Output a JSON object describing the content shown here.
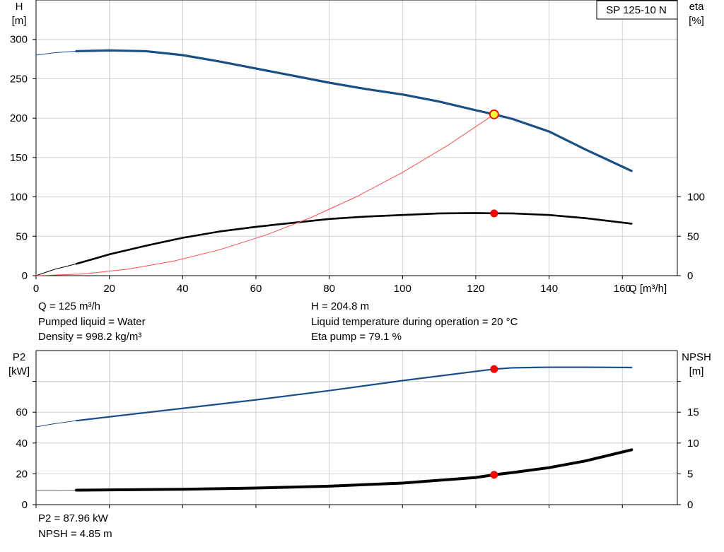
{
  "pump_model": "SP 125-10 N",
  "chart_data": [
    {
      "type": "line",
      "panel": "head-efficiency",
      "x_axis": {
        "label": "Q [m³/h]",
        "range": [
          0,
          175
        ],
        "ticks": [
          0,
          20,
          40,
          60,
          80,
          100,
          120,
          140,
          160
        ]
      },
      "y_left": {
        "label_line1": "H",
        "label_line2": "[m]",
        "range": [
          0,
          350
        ],
        "ticks": [
          0,
          50,
          100,
          150,
          200,
          250,
          300
        ]
      },
      "y_right": {
        "label_line1": "eta",
        "label_line2": "[%]",
        "range": [
          0,
          350
        ],
        "ticks": [
          0,
          50,
          100
        ]
      },
      "grid": true,
      "series": [
        {
          "name": "H",
          "axis": "left",
          "color": "#1a4f86",
          "extrapolated": {
            "x": [
              0,
              5,
              11
            ],
            "y": [
              280,
              283,
              285
            ]
          },
          "x": [
            11,
            20,
            30,
            40,
            50,
            60,
            70,
            80,
            90,
            100,
            110,
            120,
            125,
            130,
            140,
            150,
            162.5
          ],
          "y": [
            285,
            286,
            285,
            280,
            272,
            263,
            254,
            245,
            237,
            230,
            221,
            210,
            204.8,
            199,
            183,
            160,
            133
          ]
        },
        {
          "name": "eta",
          "axis": "right",
          "color": "#000000",
          "extrapolated": {
            "x": [
              0,
              5,
              11
            ],
            "y": [
              0,
              8,
              15
            ]
          },
          "x": [
            11,
            20,
            30,
            40,
            50,
            60,
            70,
            80,
            90,
            100,
            110,
            120,
            125,
            130,
            140,
            150,
            162.5
          ],
          "y": [
            15,
            27,
            38,
            48,
            56,
            62,
            67,
            72,
            75,
            77,
            79,
            79.5,
            79.1,
            79,
            77,
            73,
            66
          ]
        },
        {
          "name": "system-curve",
          "axis": "left",
          "color": "#ff4d4d",
          "x": [
            0,
            12.5,
            25,
            37.5,
            50,
            62.5,
            75,
            87.5,
            100,
            112.5,
            125
          ],
          "y": [
            0,
            2,
            8.2,
            18.4,
            32.8,
            51.2,
            73.7,
            100.4,
            131.1,
            165.9,
            204.8
          ]
        }
      ],
      "duty_point": {
        "x": 125,
        "y_head": 204.8,
        "y_eta": 79.1
      }
    },
    {
      "type": "line",
      "panel": "power-npsh",
      "x_axis": {
        "range": [
          0,
          175
        ],
        "ticks": [
          0,
          20,
          40,
          60,
          80,
          100,
          120,
          140,
          160
        ]
      },
      "y_left": {
        "label_line1": "P2",
        "label_line2": "[kW]",
        "range": [
          0,
          100
        ],
        "ticks": [
          0,
          20,
          40,
          60
        ]
      },
      "y_right": {
        "label_line1": "NPSH",
        "label_line2": "[m]",
        "range": [
          0,
          25
        ],
        "ticks": [
          0,
          5,
          10,
          15
        ]
      },
      "grid": true,
      "series": [
        {
          "name": "P2",
          "axis": "left",
          "color": "#1a4f86",
          "extrapolated": {
            "x": [
              0,
              5,
              11
            ],
            "y": [
              50.5,
              52.5,
              54.5
            ]
          },
          "x": [
            11,
            20,
            40,
            60,
            80,
            100,
            120,
            125,
            130,
            140,
            150,
            162.5
          ],
          "y": [
            54.5,
            57,
            62.5,
            68,
            74,
            80.5,
            86.5,
            87.96,
            88.8,
            89.2,
            89.2,
            89
          ]
        },
        {
          "name": "NPSH",
          "axis": "right",
          "color": "#000000",
          "extrapolated": {
            "x": [
              0,
              5,
              11
            ],
            "y": [
              2.3,
              2.3,
              2.35
            ]
          },
          "x": [
            11,
            20,
            40,
            60,
            80,
            100,
            120,
            125,
            130,
            140,
            150,
            162.5
          ],
          "y": [
            2.35,
            2.4,
            2.5,
            2.7,
            3.0,
            3.5,
            4.4,
            4.85,
            5.2,
            6.0,
            7.1,
            8.9
          ]
        }
      ],
      "duty_point": {
        "x": 125,
        "y_p2": 87.96,
        "y_npsh": 4.85
      }
    }
  ],
  "info_top": {
    "q": "Q = 125 m³/h",
    "liquid": "Pumped liquid = Water",
    "density": "Density = 998.2 kg/m³",
    "h": "H = 204.8 m",
    "temperature": "Liquid temperature during operation = 20 °C",
    "eta": "Eta pump = 79.1 %"
  },
  "info_bottom": {
    "p2": "P2 = 87.96 kW",
    "npsh": "NPSH = 4.85 m"
  },
  "colors": {
    "duty_point": "#ff0000",
    "head_marker_fill": "#ffff33",
    "grid": "#d0d0d0"
  }
}
